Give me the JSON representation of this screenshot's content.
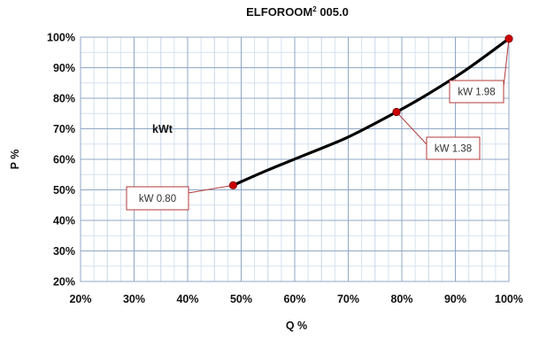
{
  "chart_data": {
    "type": "line",
    "title": "ELFOROOM",
    "title_sup": "2",
    "title_suffix": " 005.0",
    "xlabel": "Q %",
    "ylabel": "P %",
    "xlim": [
      20,
      100
    ],
    "ylim": [
      20,
      100
    ],
    "x_ticks": [
      20,
      30,
      40,
      50,
      60,
      70,
      80,
      90,
      100
    ],
    "y_ticks": [
      20,
      30,
      40,
      50,
      60,
      70,
      80,
      90,
      100
    ],
    "x_tick_labels": [
      "20%",
      "30%",
      "40%",
      "50%",
      "60%",
      "70%",
      "80%",
      "90%",
      "100%"
    ],
    "y_tick_labels": [
      "20%",
      "30%",
      "40%",
      "50%",
      "60%",
      "70%",
      "80%",
      "90%",
      "100%"
    ],
    "grid": true,
    "series": [
      {
        "x": [
          48.5,
          55,
          62,
          70,
          79,
          85,
          92,
          100
        ],
        "y": [
          51.5,
          56.5,
          61.5,
          67.3,
          75.5,
          81.5,
          89.3,
          99.5
        ],
        "color": "#000000"
      }
    ],
    "points": [
      {
        "x": 48.5,
        "y": 51.5,
        "label": "kW 0.80"
      },
      {
        "x": 79,
        "y": 75.5,
        "label": "kW 1.38"
      },
      {
        "x": 100,
        "y": 99.5,
        "label": "kW 1.98"
      }
    ],
    "annotation": "kWt",
    "point_color": "#cc0000",
    "callout_border": "#b33a3a"
  }
}
